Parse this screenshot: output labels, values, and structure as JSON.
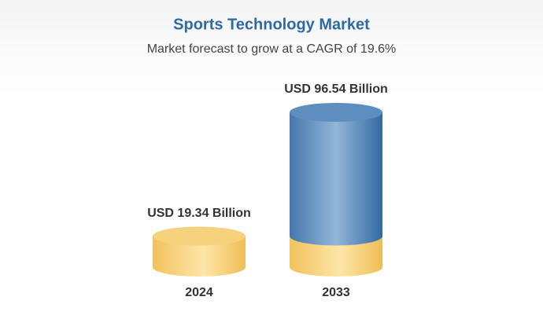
{
  "chart_data": {
    "type": "cylinder",
    "title": "Sports Technology Market",
    "subtitle": "Market forecast to grow at a CAGR of 19.6%",
    "categories": [
      "2024",
      "2033"
    ],
    "values": [
      19.34,
      96.54
    ],
    "value_labels": [
      "USD 19.34 Billion",
      "USD 96.54 Billion"
    ],
    "colors": [
      "#f7d27c",
      "#5d8ebf"
    ]
  }
}
